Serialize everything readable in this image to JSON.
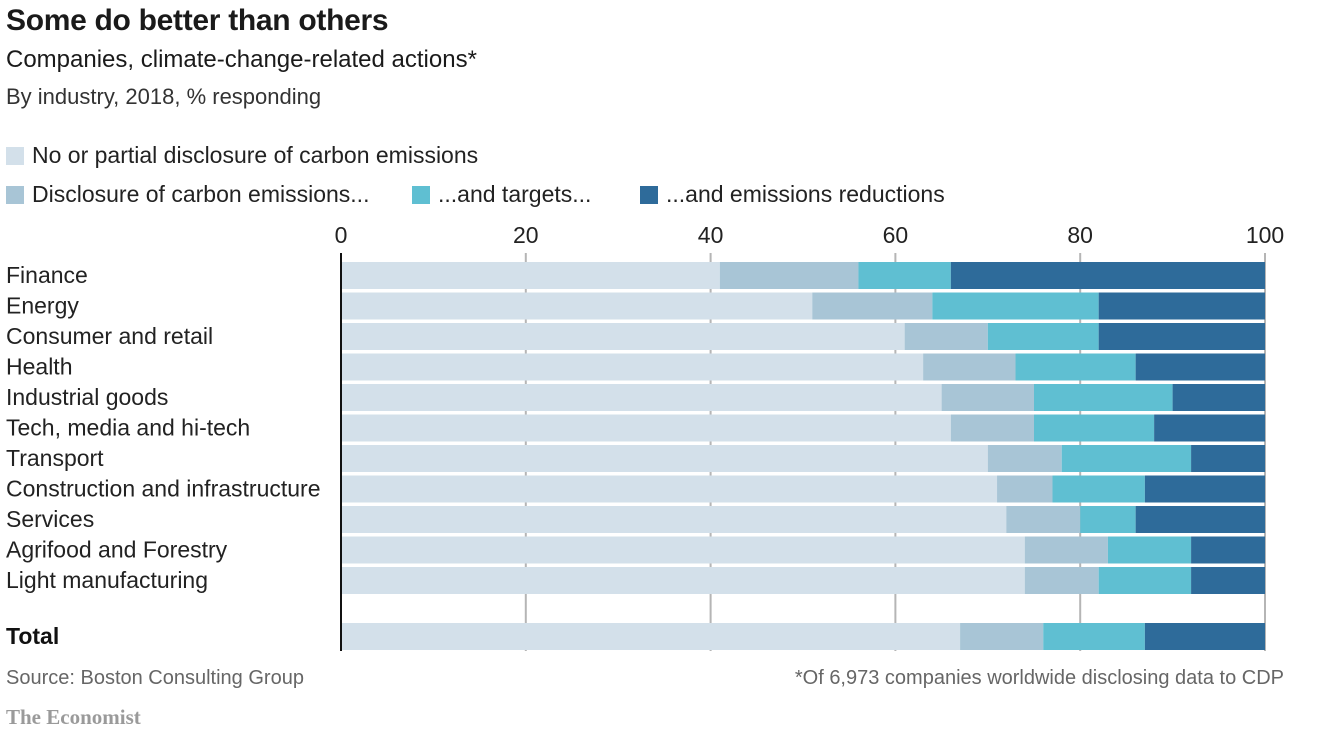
{
  "header": {
    "title": "Some do better than others",
    "subtitle": "Companies, climate-change-related actions*",
    "subsubtitle": "By industry, 2018, % responding"
  },
  "footer": {
    "source": "Source: Boston Consulting Group",
    "note": "*Of 6,973 companies worldwide disclosing data to CDP",
    "brand": "The Economist"
  },
  "colors": {
    "no_disclosure": "#d3e0ea",
    "disclosure": "#a8c5d6",
    "targets": "#5fbfd2",
    "reductions": "#2e6b9a",
    "grid": "#b5b5b5"
  },
  "chart_data": {
    "type": "bar",
    "orientation": "horizontal",
    "stacked": true,
    "xlim": [
      0,
      100
    ],
    "xticks": [
      0,
      20,
      40,
      60,
      80,
      100
    ],
    "grid": true,
    "legend_placement": "top",
    "categories": [
      "Finance",
      "Energy",
      "Consumer and retail",
      "Health",
      "Industrial goods",
      "Tech, media and hi-tech",
      "Transport",
      "Construction and infrastructure",
      "Services",
      "Agrifood and Forestry",
      "Light manufacturing"
    ],
    "series": [
      {
        "name": "No or partial disclosure of carbon emissions",
        "color_key": "no_disclosure",
        "values": [
          41,
          51,
          61,
          63,
          65,
          66,
          70,
          71,
          72,
          74,
          74
        ]
      },
      {
        "name": "Disclosure of carbon emissions...",
        "color_key": "disclosure",
        "values": [
          15,
          13,
          9,
          10,
          10,
          9,
          8,
          6,
          8,
          9,
          8
        ]
      },
      {
        "name": "...and targets...",
        "color_key": "targets",
        "values": [
          10,
          18,
          12,
          13,
          15,
          13,
          14,
          10,
          6,
          9,
          10
        ]
      },
      {
        "name": "...and emissions reductions",
        "color_key": "reductions",
        "values": [
          34,
          18,
          18,
          14,
          10,
          12,
          8,
          13,
          14,
          8,
          8
        ]
      }
    ],
    "total": {
      "label": "Total",
      "values": [
        67,
        9,
        11,
        13
      ]
    }
  }
}
